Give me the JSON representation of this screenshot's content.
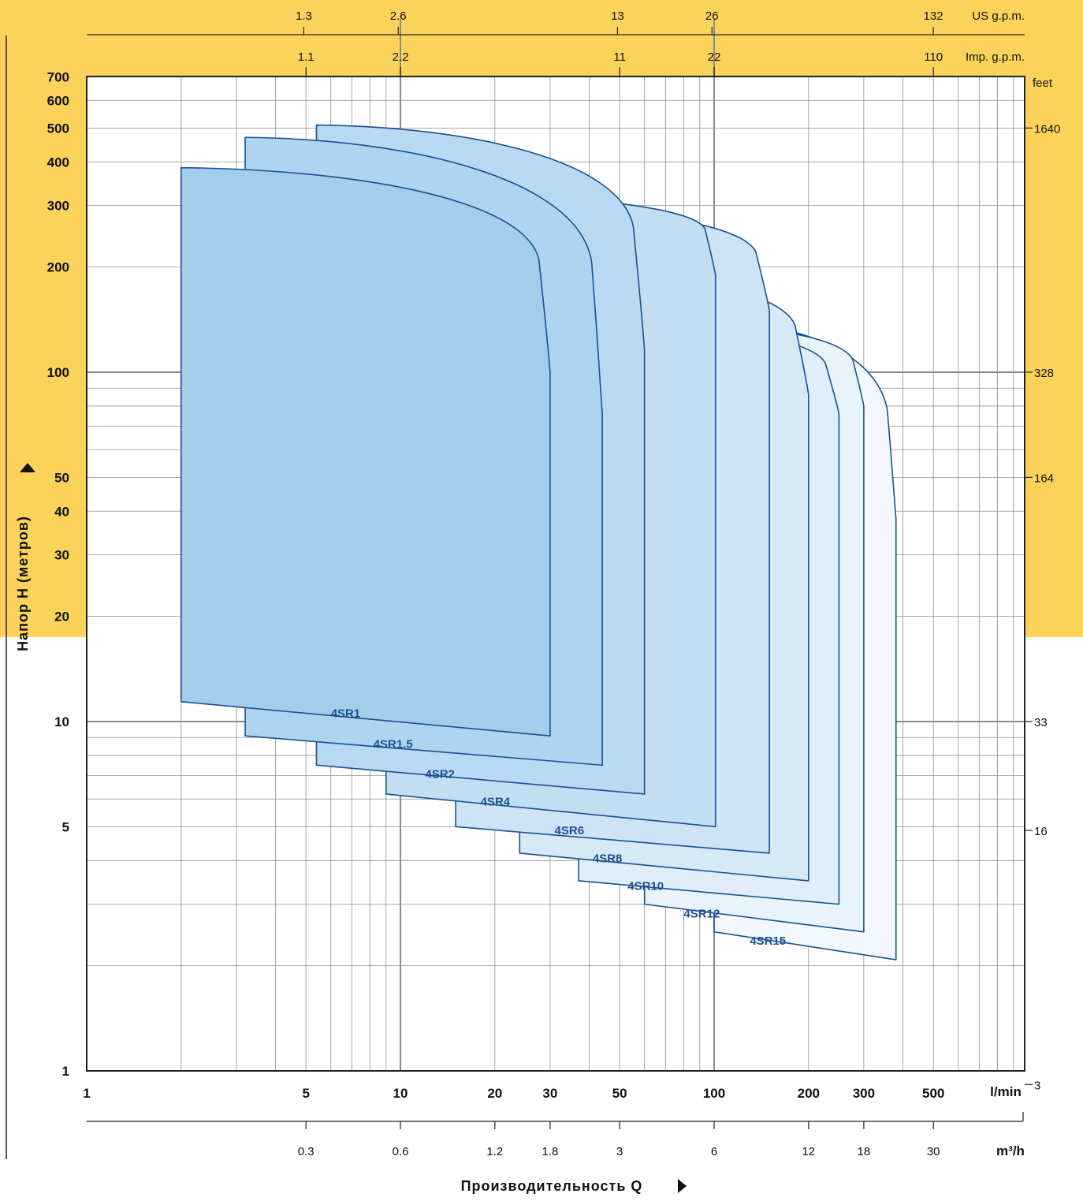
{
  "chart_data": {
    "type": "area",
    "title": "",
    "ylabel": "Напор H (метров)",
    "xlabel": "Производительность Q",
    "y_scale": "log",
    "x_scale": "log",
    "ylim": [
      1,
      800
    ],
    "xlim": [
      1,
      800
    ],
    "grid": true,
    "y_ticks": [
      "700",
      "600",
      "500",
      "400",
      "300",
      "200",
      "100",
      "50",
      "40",
      "30",
      "20",
      "10",
      "5",
      "1"
    ],
    "y_tick_values": [
      700,
      600,
      500,
      400,
      300,
      200,
      100,
      50,
      40,
      30,
      20,
      10,
      5,
      1
    ],
    "feet_ticks": [
      "feet",
      "1640",
      "328",
      "164",
      "33",
      "16",
      "3"
    ],
    "feet_tick_h_values": [
      500,
      100,
      50,
      10,
      4.88,
      0.914
    ],
    "x_ticks_lmin": [
      "1",
      "5",
      "10",
      "20",
      "30",
      "50",
      "100",
      "200",
      "300",
      "500",
      "l/min"
    ],
    "x_tick_lmin_values": [
      1,
      5,
      10,
      20,
      30,
      50,
      100,
      200,
      300,
      500
    ],
    "x_ticks_m3h": [
      "0.3",
      "0.6",
      "1.2",
      "1.8",
      "3",
      "6",
      "12",
      "18",
      "30",
      "m³/h"
    ],
    "x_tick_m3h_values": [
      0.3,
      0.6,
      1.2,
      1.8,
      3,
      6,
      12,
      18,
      30
    ],
    "x_ticks_imp": [
      "1.1",
      "2.2",
      "11",
      "22",
      "110",
      "Imp. g.p.m."
    ],
    "x_tick_imp_values": [
      1.1,
      2.2,
      11,
      22,
      110
    ],
    "x_ticks_us": [
      "1.3",
      "2.6",
      "13",
      "26",
      "132",
      "US g.p.m."
    ],
    "x_tick_us_values": [
      1.3,
      2.6,
      13,
      26,
      132
    ],
    "series": [
      {
        "name": "4SR15",
        "q_min": 100,
        "q_max": 380,
        "q_knee": 330,
        "h_top": 140,
        "h_knee": 38,
        "h_low_left": 2.5,
        "h_low_right": 2.08,
        "label_x": 130,
        "label_y": 2.3
      },
      {
        "name": "4SR12",
        "q_min": 60,
        "q_max": 300,
        "q_knee": 250,
        "h_top": 140,
        "h_knee": 80,
        "h_low_left": 3.0,
        "h_low_right": 2.5,
        "label_x": 80,
        "label_y": 2.75
      },
      {
        "name": "4SR10",
        "q_min": 37,
        "q_max": 250,
        "q_knee": 200,
        "h_top": 140,
        "h_knee": 76,
        "h_low_left": 3.5,
        "h_low_right": 3.0,
        "label_x": 53,
        "label_y": 3.3
      },
      {
        "name": "4SR8",
        "q_min": 24,
        "q_max": 200,
        "q_knee": 160,
        "h_top": 200,
        "h_knee": 86,
        "h_low_left": 4.2,
        "h_low_right": 3.5,
        "label_x": 41,
        "label_y": 3.95
      },
      {
        "name": "4SR6",
        "q_min": 15,
        "q_max": 150,
        "q_knee": 120,
        "h_top": 305,
        "h_knee": 150,
        "h_low_left": 5.0,
        "h_low_right": 4.2,
        "label_x": 31,
        "label_y": 4.75
      },
      {
        "name": "4SR4",
        "q_min": 9,
        "q_max": 101,
        "q_knee": 85,
        "h_top": 330,
        "h_knee": 190,
        "h_low_left": 6.2,
        "h_low_right": 5.0,
        "label_x": 18,
        "label_y": 5.75
      },
      {
        "name": "4SR2",
        "q_min": 5.4,
        "q_max": 60,
        "q_knee": 50,
        "h_top": 510,
        "h_knee": 115,
        "h_low_left": 7.5,
        "h_low_right": 6.2,
        "label_x": 12,
        "label_y": 6.9
      },
      {
        "name": "4SR1.5",
        "q_min": 3.2,
        "q_max": 44,
        "q_knee": 37,
        "h_top": 470,
        "h_knee": 76,
        "h_low_left": 9.1,
        "h_low_right": 7.5,
        "label_x": 8.2,
        "label_y": 8.4
      },
      {
        "name": "4SR1",
        "q_min": 2.0,
        "q_max": 30,
        "q_knee": 25,
        "h_top": 385,
        "h_knee": 100,
        "h_low_left": 11.4,
        "h_low_right": 9.1,
        "label_x": 6,
        "label_y": 10.3
      }
    ],
    "fill_colors": [
      "#f2f8fd",
      "#e9f3fb",
      "#e0eef9",
      "#d6e9f7",
      "#cce4f5",
      "#c2def3",
      "#b8d9f1",
      "#aed4ef",
      "#a2cdeb"
    ],
    "line_color": "#1c4f8f",
    "band_color": "#fbd35a"
  }
}
